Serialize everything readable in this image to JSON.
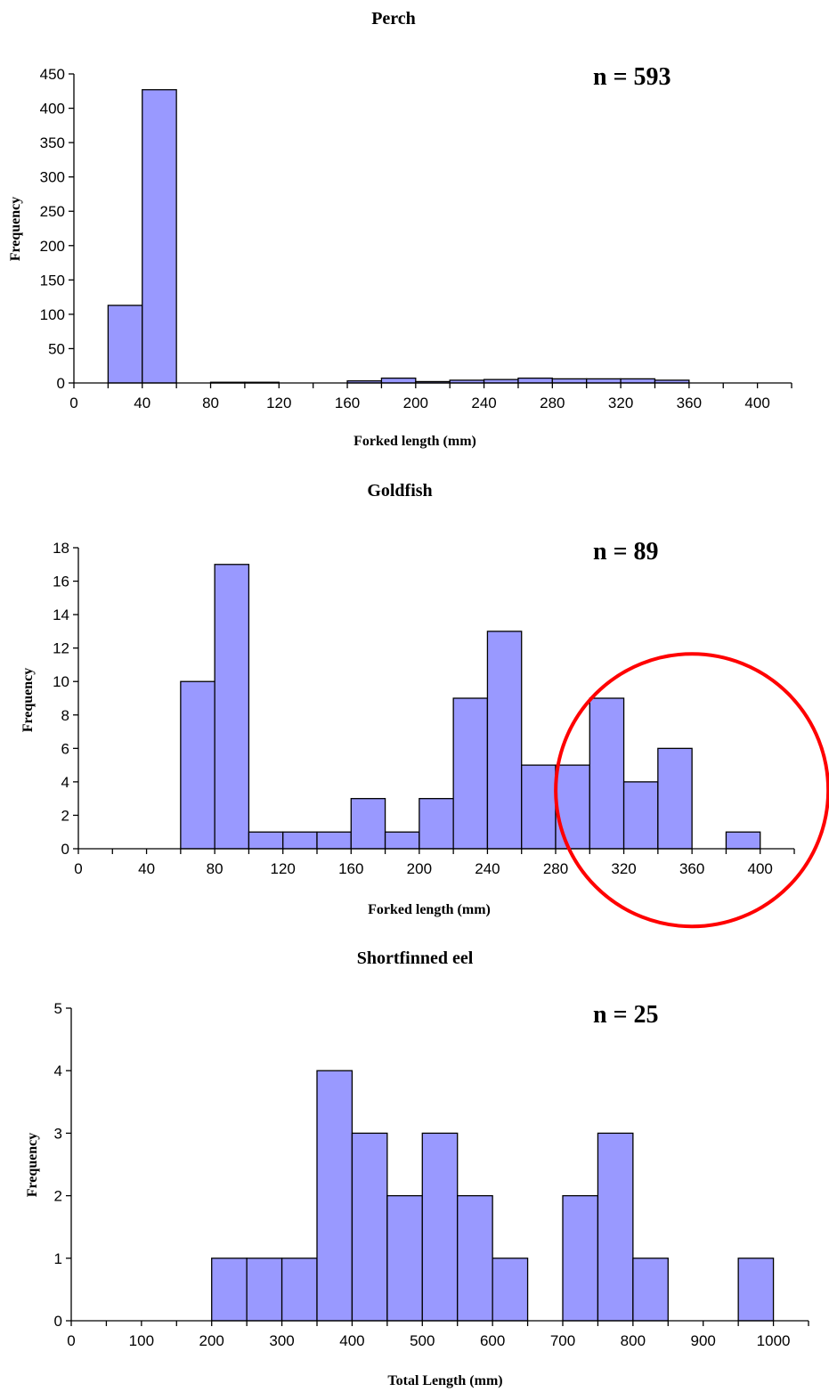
{
  "colors": {
    "bar_fill": "#9999ff",
    "bar_stroke": "#000000",
    "highlight": "#ff0000"
  },
  "chart_data": [
    {
      "type": "bar",
      "title": "Perch",
      "annotation": "n = 593",
      "xlabel": "Forked length (mm)",
      "ylabel": "Frequency",
      "bin_width": 20,
      "xlim": [
        0,
        420
      ],
      "ylim": [
        0,
        450
      ],
      "xticks": [
        0,
        40,
        80,
        120,
        160,
        200,
        240,
        280,
        320,
        360,
        400
      ],
      "yticks": [
        0,
        50,
        100,
        150,
        200,
        250,
        300,
        350,
        400,
        450
      ],
      "bins": [
        {
          "x": 20,
          "value": 113
        },
        {
          "x": 40,
          "value": 427
        },
        {
          "x": 80,
          "value": 1
        },
        {
          "x": 100,
          "value": 1
        },
        {
          "x": 160,
          "value": 3
        },
        {
          "x": 180,
          "value": 7
        },
        {
          "x": 200,
          "value": 2
        },
        {
          "x": 220,
          "value": 4
        },
        {
          "x": 240,
          "value": 5
        },
        {
          "x": 260,
          "value": 7
        },
        {
          "x": 280,
          "value": 6
        },
        {
          "x": 300,
          "value": 6
        },
        {
          "x": 320,
          "value": 6
        },
        {
          "x": 340,
          "value": 4
        }
      ],
      "grid": false
    },
    {
      "type": "bar",
      "title": "Goldfish",
      "annotation": "n = 89",
      "xlabel": "Forked length (mm)",
      "ylabel": "Frequency",
      "bin_width": 20,
      "xlim": [
        0,
        420
      ],
      "ylim": [
        0,
        18
      ],
      "xticks": [
        0,
        40,
        80,
        120,
        160,
        200,
        240,
        280,
        320,
        360,
        400
      ],
      "yticks": [
        0,
        2,
        4,
        6,
        8,
        10,
        12,
        14,
        16,
        18
      ],
      "bins": [
        {
          "x": 60,
          "value": 10
        },
        {
          "x": 80,
          "value": 17
        },
        {
          "x": 100,
          "value": 1
        },
        {
          "x": 120,
          "value": 1
        },
        {
          "x": 140,
          "value": 1
        },
        {
          "x": 160,
          "value": 3
        },
        {
          "x": 180,
          "value": 1
        },
        {
          "x": 200,
          "value": 3
        },
        {
          "x": 220,
          "value": 9
        },
        {
          "x": 240,
          "value": 13
        },
        {
          "x": 260,
          "value": 5
        },
        {
          "x": 280,
          "value": 5
        },
        {
          "x": 300,
          "value": 9
        },
        {
          "x": 320,
          "value": 4
        },
        {
          "x": 340,
          "value": 6
        },
        {
          "x": 380,
          "value": 1
        }
      ],
      "highlight_circle": {
        "center_x": 360,
        "center_y": 3.5
      },
      "grid": false
    },
    {
      "type": "bar",
      "title": "Shortfinned eel",
      "annotation": "n = 25",
      "xlabel": "Total Length (mm)",
      "ylabel": "Frequency",
      "bin_width": 50,
      "xlim": [
        0,
        1050
      ],
      "ylim": [
        0,
        5
      ],
      "xticks": [
        0,
        100,
        200,
        300,
        400,
        500,
        600,
        700,
        800,
        900,
        1000
      ],
      "yticks": [
        0,
        1,
        2,
        3,
        4,
        5
      ],
      "bins": [
        {
          "x": 200,
          "value": 1
        },
        {
          "x": 250,
          "value": 1
        },
        {
          "x": 300,
          "value": 1
        },
        {
          "x": 350,
          "value": 4
        },
        {
          "x": 400,
          "value": 3
        },
        {
          "x": 450,
          "value": 2
        },
        {
          "x": 500,
          "value": 3
        },
        {
          "x": 550,
          "value": 2
        },
        {
          "x": 600,
          "value": 1
        },
        {
          "x": 700,
          "value": 2
        },
        {
          "x": 750,
          "value": 3
        },
        {
          "x": 800,
          "value": 1
        },
        {
          "x": 950,
          "value": 1
        }
      ],
      "grid": false
    }
  ]
}
